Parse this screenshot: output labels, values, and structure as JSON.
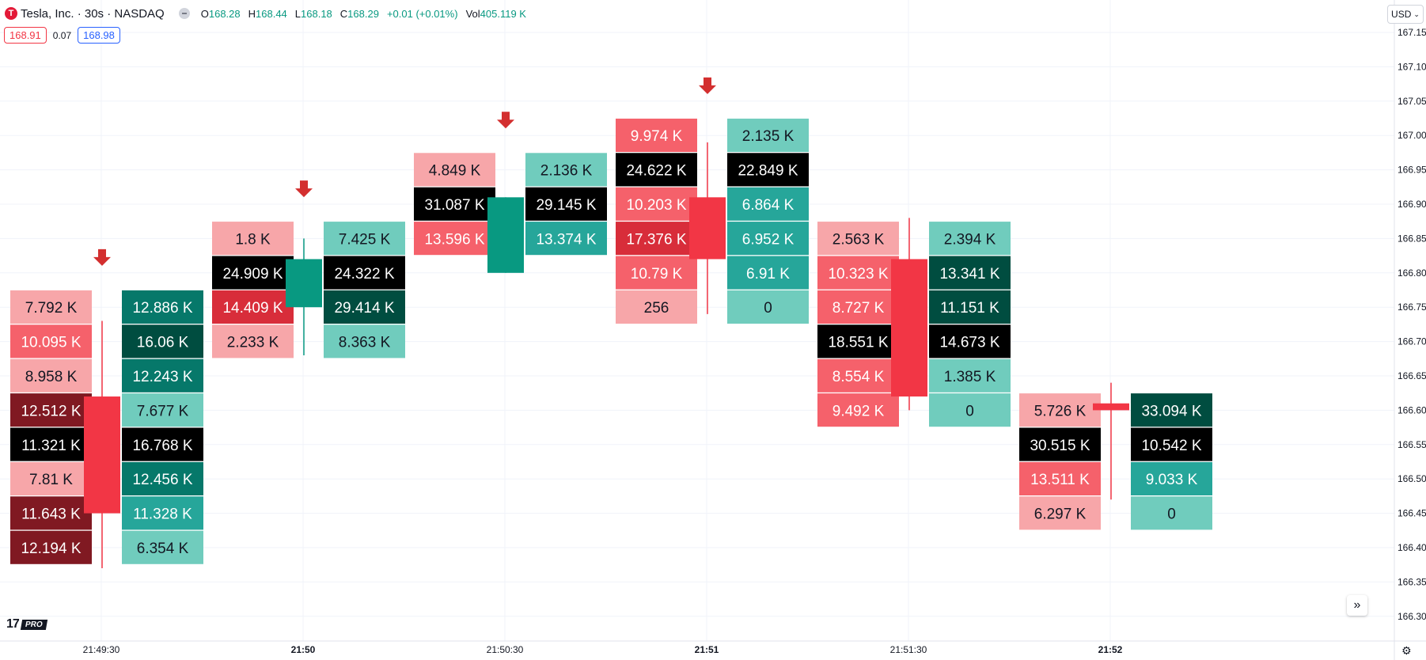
{
  "header": {
    "logo_letter": "T",
    "symbol": "Tesla, Inc. · 30s · NASDAQ",
    "open_label": "O",
    "open": "168.28",
    "high_label": "H",
    "high": "168.44",
    "low_label": "L",
    "low": "168.18",
    "close_label": "C",
    "close": "168.29",
    "change": "+0.01 (+0.01%)",
    "vol_label": "Vol",
    "volume": "405.119 K",
    "bid": "168.91",
    "spread": "0.07",
    "ask": "168.98",
    "currency": "USD",
    "logo_text": "17",
    "pro_badge": "PRO",
    "scroll_icon": "»",
    "settings_icon": "⚙"
  },
  "colors": {
    "up": "#089981",
    "down": "#f23645",
    "arrow": "#d32f2f",
    "poc": "#000000",
    "sell_shades": [
      "#f7a6a9",
      "#f5616b",
      "#d82d3a",
      "#801922"
    ],
    "buy_shades": [
      "#70ccbd",
      "#26a69a",
      "#06786a",
      "#004d40"
    ]
  },
  "chart_data": {
    "type": "footprint",
    "y_axis": {
      "min": 166.3,
      "max": 167.15,
      "step": 0.05,
      "ticks": [
        "167.15",
        "167.10",
        "167.05",
        "167.00",
        "166.95",
        "166.90",
        "166.85",
        "166.80",
        "166.75",
        "166.70",
        "166.65",
        "166.60",
        "166.55",
        "166.50",
        "166.45",
        "166.40",
        "166.35",
        "166.30"
      ]
    },
    "x_axis": {
      "ticks": [
        "21:49:30",
        "21:50",
        "21:50:30",
        "21:51",
        "21:51:30",
        "21:52"
      ],
      "bold": [
        "21:50",
        "21:51",
        "21:52"
      ]
    },
    "bars": [
      {
        "time": "21:49:30",
        "open": 166.62,
        "close": 166.45,
        "high": 166.73,
        "low": 166.37,
        "has_arrow": true,
        "levels": [
          {
            "price": 166.75,
            "sell": "7.792 K",
            "buy": "12.886 K",
            "sell_shade": 0,
            "buy_shade": 2
          },
          {
            "price": 166.7,
            "sell": "10.095 K",
            "buy": "16.06 K",
            "sell_shade": 1,
            "buy_shade": 3
          },
          {
            "price": 166.65,
            "sell": "8.958 K",
            "buy": "12.243 K",
            "sell_shade": 0,
            "buy_shade": 2
          },
          {
            "price": 166.6,
            "sell": "12.512 K",
            "buy": "7.677 K",
            "sell_shade": 3,
            "buy_shade": 0
          },
          {
            "price": 166.55,
            "sell": "11.321 K",
            "buy": "16.768 K",
            "sell_shade": 4,
            "buy_shade": 4
          },
          {
            "price": 166.5,
            "sell": "7.81 K",
            "buy": "12.456 K",
            "sell_shade": 0,
            "buy_shade": 2
          },
          {
            "price": 166.45,
            "sell": "11.643 K",
            "buy": "11.328 K",
            "sell_shade": 3,
            "buy_shade": 1
          },
          {
            "price": 166.4,
            "sell": "12.194 K",
            "buy": "6.354 K",
            "sell_shade": 3,
            "buy_shade": 0
          }
        ]
      },
      {
        "time": "21:50",
        "open": 166.75,
        "close": 166.82,
        "high": 166.85,
        "low": 166.68,
        "has_arrow": true,
        "levels": [
          {
            "price": 166.85,
            "sell": "1.8 K",
            "buy": "7.425 K",
            "sell_shade": 0,
            "buy_shade": 0
          },
          {
            "price": 166.8,
            "sell": "24.909 K",
            "buy": "24.322 K",
            "sell_shade": 4,
            "buy_shade": 4
          },
          {
            "price": 166.75,
            "sell": "14.409 K",
            "buy": "29.414 K",
            "sell_shade": 2,
            "buy_shade": 3
          },
          {
            "price": 166.7,
            "sell": "2.233 K",
            "buy": "8.363 K",
            "sell_shade": 0,
            "buy_shade": 0
          }
        ]
      },
      {
        "time": "21:50:30",
        "open": 166.8,
        "close": 166.91,
        "high": 166.91,
        "low": 166.8,
        "has_arrow": true,
        "levels": [
          {
            "price": 166.95,
            "sell": "4.849 K",
            "buy": "2.136 K",
            "sell_shade": 0,
            "buy_shade": 0
          },
          {
            "price": 166.9,
            "sell": "31.087 K",
            "buy": "29.145 K",
            "sell_shade": 4,
            "buy_shade": 4
          },
          {
            "price": 166.85,
            "sell": "13.596 K",
            "buy": "13.374 K",
            "sell_shade": 1,
            "buy_shade": 1
          }
        ]
      },
      {
        "time": "21:51",
        "open": 166.91,
        "close": 166.82,
        "high": 166.99,
        "low": 166.74,
        "has_arrow": true,
        "levels": [
          {
            "price": 167.0,
            "sell": "9.974 K",
            "buy": "2.135 K",
            "sell_shade": 1,
            "buy_shade": 0
          },
          {
            "price": 166.95,
            "sell": "24.622 K",
            "buy": "22.849 K",
            "sell_shade": 4,
            "buy_shade": 4
          },
          {
            "price": 166.9,
            "sell": "10.203 K",
            "buy": "6.864 K",
            "sell_shade": 1,
            "buy_shade": 1
          },
          {
            "price": 166.85,
            "sell": "17.376 K",
            "buy": "6.952 K",
            "sell_shade": 2,
            "buy_shade": 1
          },
          {
            "price": 166.8,
            "sell": "10.79 K",
            "buy": "6.91 K",
            "sell_shade": 1,
            "buy_shade": 1
          },
          {
            "price": 166.75,
            "sell": "256",
            "buy": "0",
            "sell_shade": 0,
            "buy_shade": 0
          }
        ]
      },
      {
        "time": "21:51:30",
        "open": 166.82,
        "close": 166.62,
        "high": 166.88,
        "low": 166.6,
        "has_arrow": false,
        "levels": [
          {
            "price": 166.85,
            "sell": "2.563 K",
            "buy": "2.394 K",
            "sell_shade": 0,
            "buy_shade": 0
          },
          {
            "price": 166.8,
            "sell": "10.323 K",
            "buy": "13.341 K",
            "sell_shade": 1,
            "buy_shade": 3
          },
          {
            "price": 166.75,
            "sell": "8.727 K",
            "buy": "11.151 K",
            "sell_shade": 1,
            "buy_shade": 3
          },
          {
            "price": 166.7,
            "sell": "18.551 K",
            "buy": "14.673 K",
            "sell_shade": 4,
            "buy_shade": 4
          },
          {
            "price": 166.65,
            "sell": "8.554 K",
            "buy": "1.385 K",
            "sell_shade": 1,
            "buy_shade": 0
          },
          {
            "price": 166.6,
            "sell": "9.492 K",
            "buy": "0",
            "sell_shade": 1,
            "buy_shade": 0
          }
        ]
      },
      {
        "time": "21:52",
        "open": 166.61,
        "close": 166.6,
        "high": 166.64,
        "low": 166.47,
        "has_arrow": false,
        "levels": [
          {
            "price": 166.6,
            "sell": "5.726 K",
            "buy": "33.094 K",
            "sell_shade": 0,
            "buy_shade": 3
          },
          {
            "price": 166.55,
            "sell": "30.515 K",
            "buy": "10.542 K",
            "sell_shade": 4,
            "buy_shade": 4
          },
          {
            "price": 166.5,
            "sell": "13.511 K",
            "buy": "9.033 K",
            "sell_shade": 1,
            "buy_shade": 1
          },
          {
            "price": 166.45,
            "sell": "6.297 K",
            "buy": "0",
            "sell_shade": 0,
            "buy_shade": 0
          }
        ]
      }
    ]
  }
}
